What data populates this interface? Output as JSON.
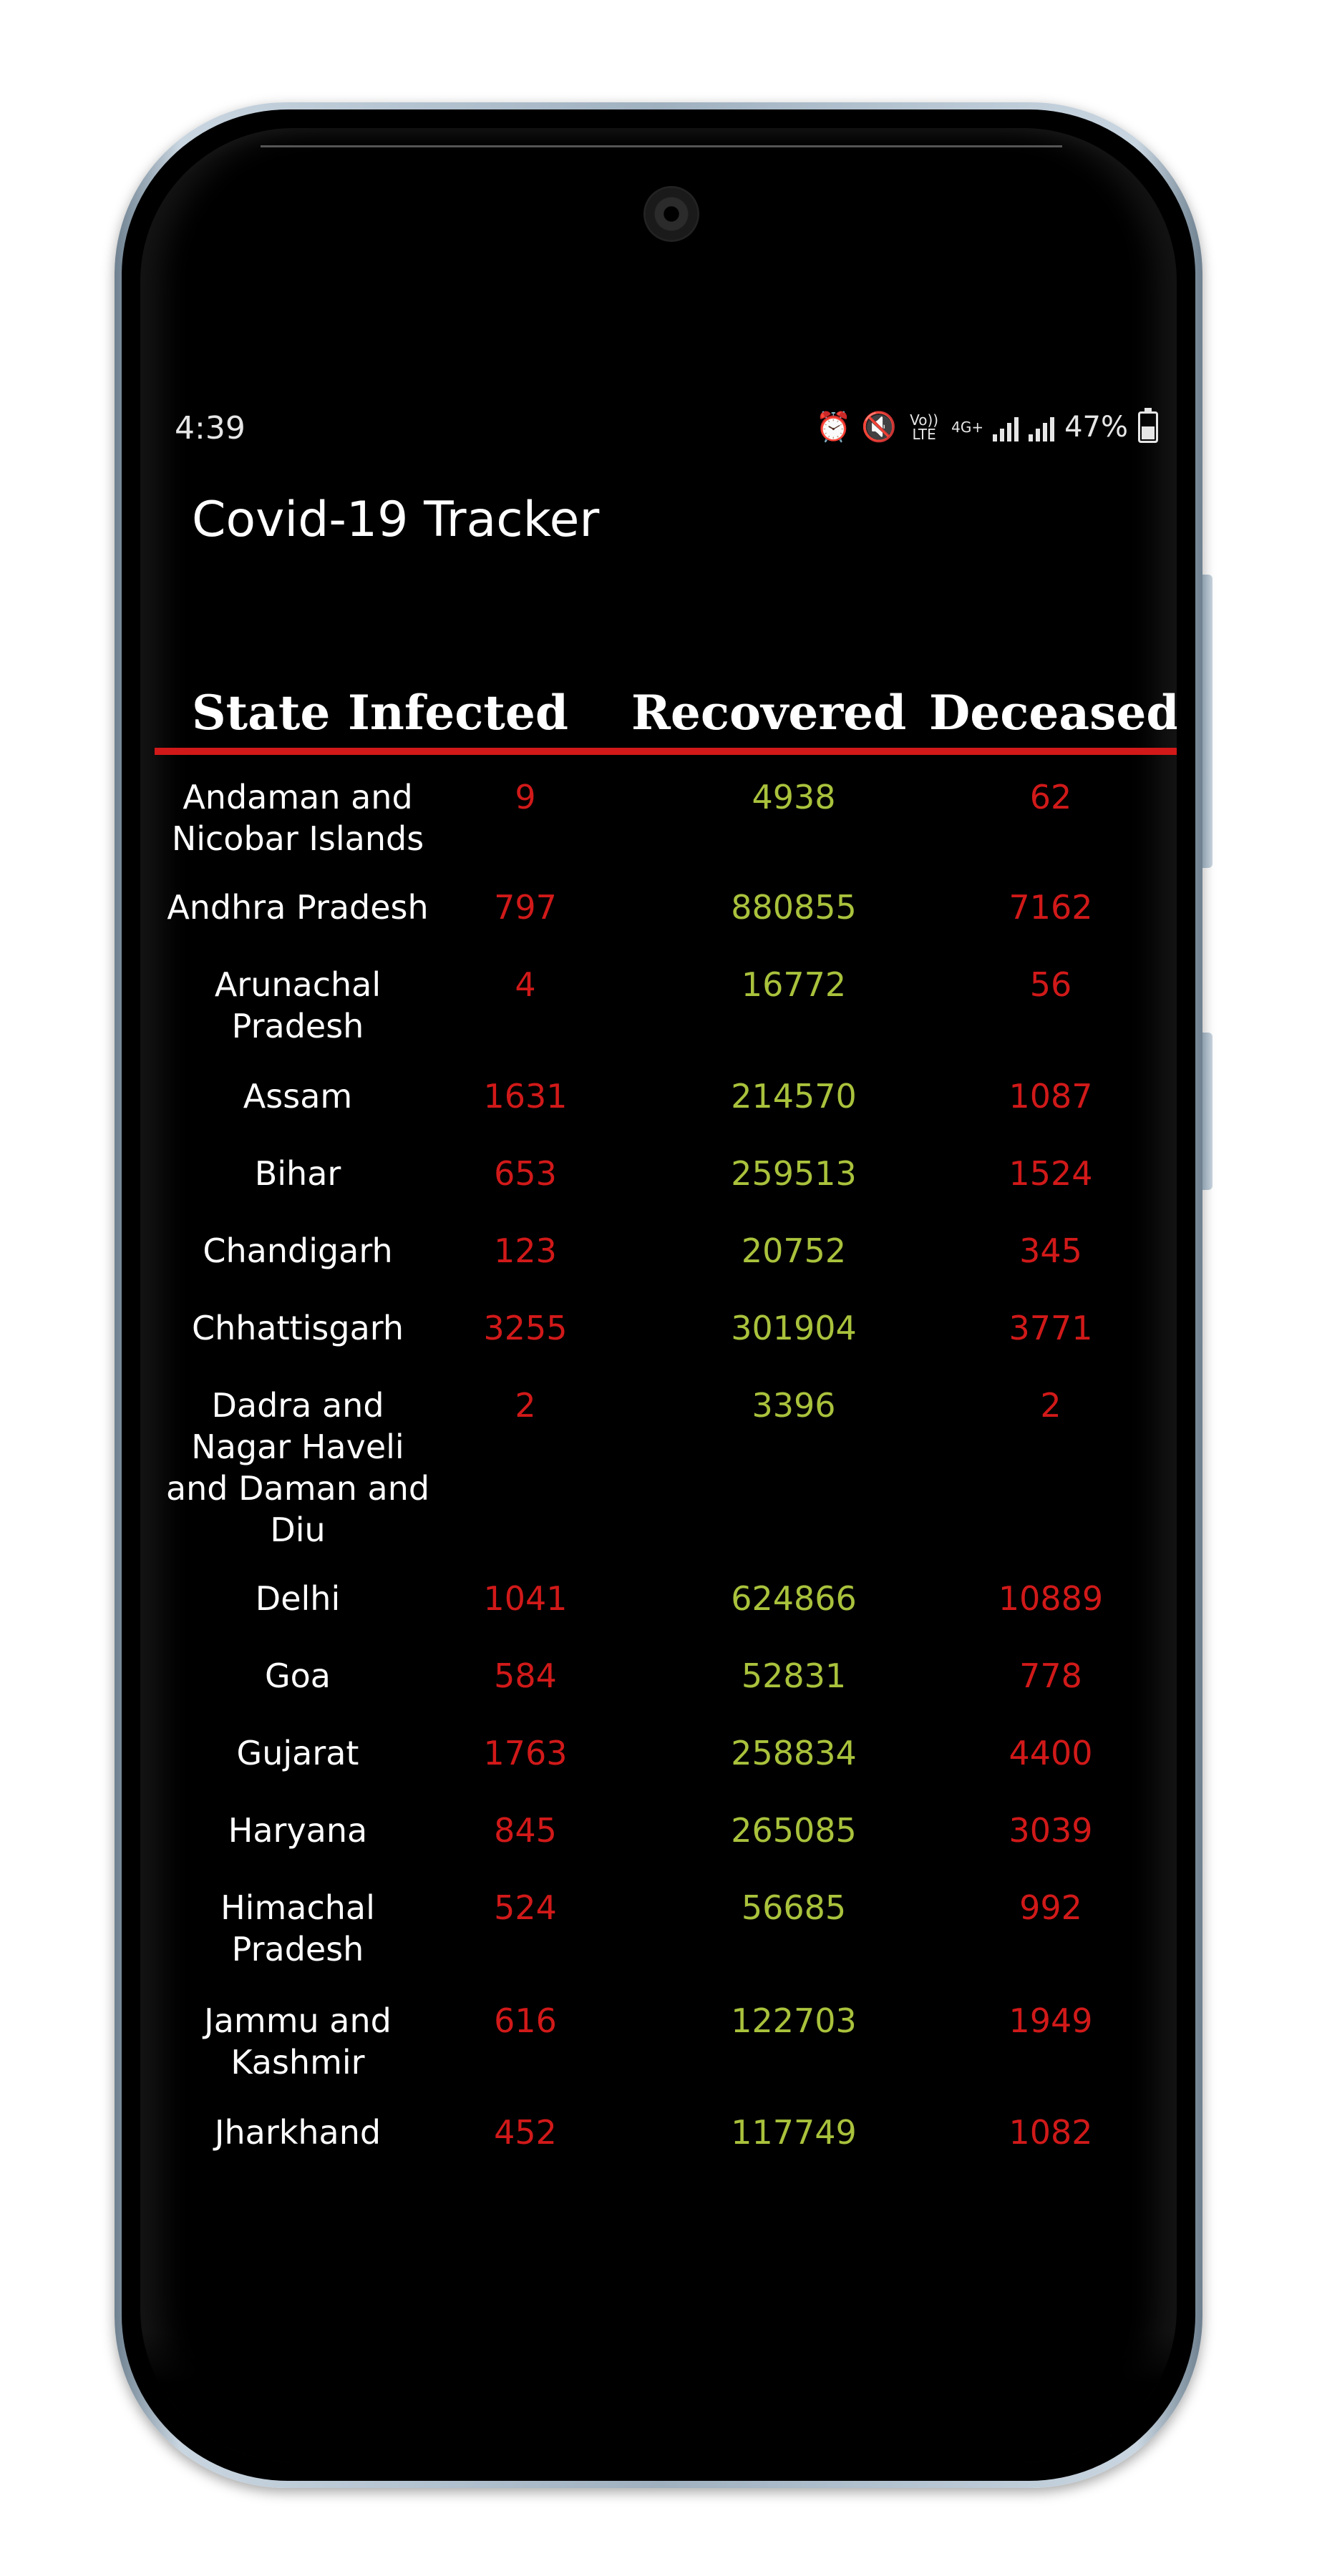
{
  "status_bar": {
    "time": "4:39",
    "network_lte": "Vo)) LTE",
    "network_4g": "4G+",
    "battery": "47%",
    "icons": [
      "alarm-icon",
      "mute-icon",
      "volte-icon",
      "4g-icon",
      "signal-icon",
      "battery-icon"
    ]
  },
  "app": {
    "title": "Covid-19 Tracker"
  },
  "table": {
    "headers": {
      "state": "State",
      "infected": "Infected",
      "recovered": "Recovered",
      "deceased": "Deceased"
    },
    "rows": [
      {
        "state": "Andaman and Nicobar Islands",
        "infected": "9",
        "recovered": "4938",
        "deceased": "62"
      },
      {
        "state": "Andhra Pradesh",
        "infected": "797",
        "recovered": "880855",
        "deceased": "7162"
      },
      {
        "state": "Arunachal Pradesh",
        "infected": "4",
        "recovered": "16772",
        "deceased": "56"
      },
      {
        "state": "Assam",
        "infected": "1631",
        "recovered": "214570",
        "deceased": "1087"
      },
      {
        "state": "Bihar",
        "infected": "653",
        "recovered": "259513",
        "deceased": "1524"
      },
      {
        "state": "Chandigarh",
        "infected": "123",
        "recovered": "20752",
        "deceased": "345"
      },
      {
        "state": "Chhattisgarh",
        "infected": "3255",
        "recovered": "301904",
        "deceased": "3771"
      },
      {
        "state": "Dadra and Nagar Haveli and Daman and Diu",
        "infected": "2",
        "recovered": "3396",
        "deceased": "2"
      },
      {
        "state": "Delhi",
        "infected": "1041",
        "recovered": "624866",
        "deceased": "10889"
      },
      {
        "state": "Goa",
        "infected": "584",
        "recovered": "52831",
        "deceased": "778"
      },
      {
        "state": "Gujarat",
        "infected": "1763",
        "recovered": "258834",
        "deceased": "4400"
      },
      {
        "state": "Haryana",
        "infected": "845",
        "recovered": "265085",
        "deceased": "3039"
      },
      {
        "state": "Himachal Pradesh",
        "infected": "524",
        "recovered": "56685",
        "deceased": "992"
      },
      {
        "state": "Jammu and Kashmir",
        "infected": "616",
        "recovered": "122703",
        "deceased": "1949"
      },
      {
        "state": "Jharkhand",
        "infected": "452",
        "recovered": "117749",
        "deceased": "1082"
      }
    ]
  },
  "colors": {
    "background": "#000000",
    "accent_red": "#d11919",
    "recovered_green": "#a9c23c",
    "text_white": "#ffffff"
  }
}
